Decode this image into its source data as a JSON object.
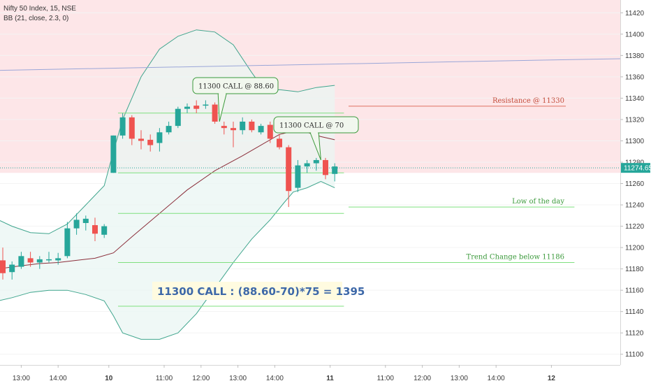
{
  "legend": {
    "symbol": "Nifty 50 Index, 15, NSE",
    "indicator": "BB (21, close, 2.3, 0)"
  },
  "colors": {
    "up": "#26a69a",
    "down": "#ef5350",
    "band_line": "#3fa58d",
    "band_fill": "#eaf6f3",
    "resistance_zone": "#fde6e8",
    "basis": "#8b2e3a",
    "trendline": "#9aa6d8",
    "level_line": "#7fe07f",
    "resistance_line": "#e07060",
    "price_tag": "#26a69a",
    "formula_bg": "#fffbe0"
  },
  "price_tag": "11274.65",
  "annotations": {
    "resistance": "Resistance @ 11330",
    "low_of_day": "Low of the day",
    "trend_change": "Trend Change below 11186",
    "call_buy": "11300 CALL @ 88.60",
    "call_sell": "11300 CALL @ 70",
    "formula": "11300 CALL : (88.60-70)*75 = 1395"
  },
  "chart_data": {
    "type": "candlestick",
    "title": "Nifty 50 Index, 15, NSE",
    "ylim": [
      11090,
      11432
    ],
    "y_ticks": [
      11100,
      11120,
      11140,
      11160,
      11180,
      11200,
      11220,
      11240,
      11260,
      11280,
      11300,
      11320,
      11340,
      11360,
      11380,
      11400,
      11420
    ],
    "x_ticks": [
      {
        "i": 2,
        "label": "13:00",
        "bold": false
      },
      {
        "i": 6,
        "label": "14:00",
        "bold": false
      },
      {
        "i": 11.5,
        "label": "10",
        "bold": true
      },
      {
        "i": 17.5,
        "label": "11:00",
        "bold": false
      },
      {
        "i": 21.5,
        "label": "12:00",
        "bold": false
      },
      {
        "i": 25.5,
        "label": "13:00",
        "bold": false
      },
      {
        "i": 29.5,
        "label": "14:00",
        "bold": false
      },
      {
        "i": 35.5,
        "label": "11",
        "bold": true
      },
      {
        "i": 41.5,
        "label": "11:00",
        "bold": false
      },
      {
        "i": 45.5,
        "label": "12:00",
        "bold": false
      },
      {
        "i": 49.5,
        "label": "13:00",
        "bold": false
      },
      {
        "i": 53.5,
        "label": "14:00",
        "bold": false
      },
      {
        "i": 59.5,
        "label": "12",
        "bold": true
      }
    ],
    "candles": [
      {
        "o": 11188,
        "h": 11200,
        "l": 11170,
        "c": 11176
      },
      {
        "o": 11177,
        "h": 11187,
        "l": 11170,
        "c": 11184
      },
      {
        "o": 11182,
        "h": 11196,
        "l": 11180,
        "c": 11192
      },
      {
        "o": 11190,
        "h": 11196,
        "l": 11182,
        "c": 11186
      },
      {
        "o": 11186,
        "h": 11192,
        "l": 11180,
        "c": 11189
      },
      {
        "o": 11188,
        "h": 11196,
        "l": 11186,
        "c": 11189
      },
      {
        "o": 11188,
        "h": 11195,
        "l": 11184,
        "c": 11190
      },
      {
        "o": 11192,
        "h": 11224,
        "l": 11190,
        "c": 11218
      },
      {
        "o": 11218,
        "h": 11232,
        "l": 11212,
        "c": 11226
      },
      {
        "o": 11223,
        "h": 11230,
        "l": 11216,
        "c": 11227
      },
      {
        "o": 11221,
        "h": 11228,
        "l": 11206,
        "c": 11213
      },
      {
        "o": 11212,
        "h": 11222,
        "l": 11209,
        "c": 11220
      },
      {
        "o": 11270,
        "h": 11305,
        "l": 11270,
        "c": 11305
      },
      {
        "o": 11305,
        "h": 11326,
        "l": 11302,
        "c": 11322
      },
      {
        "o": 11322,
        "h": 11324,
        "l": 11296,
        "c": 11302
      },
      {
        "o": 11302,
        "h": 11310,
        "l": 11292,
        "c": 11300
      },
      {
        "o": 11301,
        "h": 11306,
        "l": 11290,
        "c": 11296
      },
      {
        "o": 11298,
        "h": 11312,
        "l": 11290,
        "c": 11308
      },
      {
        "o": 11308,
        "h": 11318,
        "l": 11306,
        "c": 11314
      },
      {
        "o": 11314,
        "h": 11332,
        "l": 11312,
        "c": 11330
      },
      {
        "o": 11330,
        "h": 11335,
        "l": 11326,
        "c": 11332
      },
      {
        "o": 11333,
        "h": 11338,
        "l": 11326,
        "c": 11330
      },
      {
        "o": 11333,
        "h": 11338,
        "l": 11330,
        "c": 11334
      },
      {
        "o": 11334,
        "h": 11336,
        "l": 11316,
        "c": 11318
      },
      {
        "o": 11314,
        "h": 11318,
        "l": 11306,
        "c": 11312
      },
      {
        "o": 11312,
        "h": 11318,
        "l": 11294,
        "c": 11310
      },
      {
        "o": 11310,
        "h": 11322,
        "l": 11306,
        "c": 11318
      },
      {
        "o": 11318,
        "h": 11320,
        "l": 11308,
        "c": 11310
      },
      {
        "o": 11308,
        "h": 11316,
        "l": 11306,
        "c": 11314
      },
      {
        "o": 11315,
        "h": 11318,
        "l": 11298,
        "c": 11302
      },
      {
        "o": 11302,
        "h": 11306,
        "l": 11292,
        "c": 11294
      },
      {
        "o": 11294,
        "h": 11296,
        "l": 11238,
        "c": 11253
      },
      {
        "o": 11256,
        "h": 11282,
        "l": 11252,
        "c": 11277
      },
      {
        "o": 11276,
        "h": 11282,
        "l": 11270,
        "c": 11279
      },
      {
        "o": 11279,
        "h": 11284,
        "l": 11272,
        "c": 11282
      },
      {
        "o": 11282,
        "h": 11284,
        "l": 11264,
        "c": 11268
      },
      {
        "o": 11269,
        "h": 11279,
        "l": 11262,
        "c": 11276
      }
    ],
    "bb_upper": [
      [
        -0.5,
        11226
      ],
      [
        1,
        11220
      ],
      [
        3,
        11214
      ],
      [
        5,
        11213
      ],
      [
        7,
        11222
      ],
      [
        9,
        11240
      ],
      [
        11,
        11258
      ],
      [
        12,
        11290
      ],
      [
        13,
        11320
      ],
      [
        15,
        11360
      ],
      [
        17,
        11386
      ],
      [
        19,
        11398
      ],
      [
        21,
        11404
      ],
      [
        23,
        11402
      ],
      [
        25,
        11390
      ],
      [
        27,
        11364
      ],
      [
        28.5,
        11346
      ],
      [
        30,
        11348
      ],
      [
        32,
        11346
      ],
      [
        34,
        11350
      ],
      [
        36,
        11352
      ]
    ],
    "bb_lower": [
      [
        -0.5,
        11150
      ],
      [
        1,
        11153
      ],
      [
        3,
        11158
      ],
      [
        5,
        11160
      ],
      [
        7,
        11160
      ],
      [
        9,
        11156
      ],
      [
        11,
        11150
      ],
      [
        12,
        11136
      ],
      [
        13,
        11120
      ],
      [
        15,
        11114
      ],
      [
        17,
        11114
      ],
      [
        19,
        11120
      ],
      [
        21,
        11138
      ],
      [
        23,
        11162
      ],
      [
        25,
        11186
      ],
      [
        27,
        11208
      ],
      [
        29,
        11226
      ],
      [
        30.5,
        11242
      ],
      [
        31.5,
        11252
      ],
      [
        33,
        11256
      ],
      [
        34.5,
        11262
      ],
      [
        36,
        11256
      ]
    ],
    "bb_basis": [
      [
        -0.5,
        11180
      ],
      [
        2,
        11183
      ],
      [
        4,
        11185
      ],
      [
        6,
        11186
      ],
      [
        8,
        11188
      ],
      [
        10,
        11190
      ],
      [
        12,
        11195
      ],
      [
        14,
        11210
      ],
      [
        17,
        11232
      ],
      [
        20,
        11254
      ],
      [
        23,
        11272
      ],
      [
        26,
        11286
      ],
      [
        28,
        11296
      ],
      [
        30,
        11306
      ],
      [
        31.5,
        11309
      ],
      [
        33,
        11308
      ],
      [
        34.5,
        11304
      ],
      [
        36,
        11301
      ]
    ],
    "trendline": {
      "from": {
        "i": -1,
        "v": 11366
      },
      "to": {
        "i": 67,
        "v": 11377
      }
    },
    "resistance_zone": {
      "from": 11270,
      "to": 11432
    },
    "resistance_line": {
      "v": 11332.5,
      "start_i": 37.5
    },
    "levels": [
      {
        "v": 11326,
        "start_i": 12.5,
        "end_i": 37
      },
      {
        "v": 11270,
        "start_i": 12.5,
        "end_i": 37
      },
      {
        "v": 11232,
        "start_i": 12.5,
        "end_i": 37
      },
      {
        "v": 11238,
        "start_i": 37.5,
        "end_i": 62
      },
      {
        "v": 11186,
        "start_i": 12.5,
        "end_i": 62
      },
      {
        "v": 11145,
        "start_i": 12.5,
        "end_i": 37
      }
    ],
    "last_price": 11274.65
  }
}
